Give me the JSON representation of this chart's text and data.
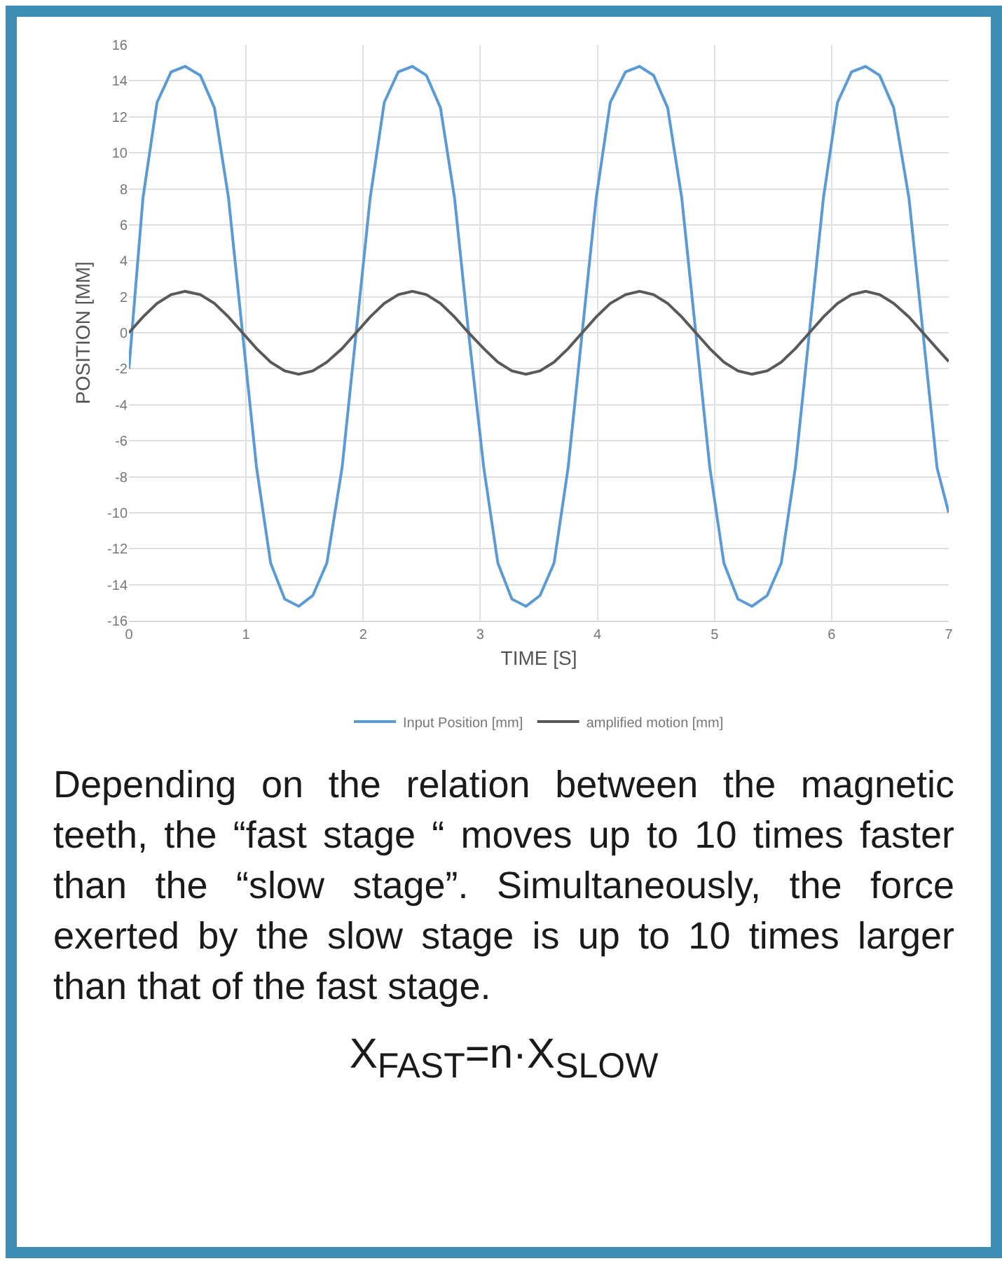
{
  "chart_data": {
    "type": "line",
    "xlabel": "TIME [S]",
    "ylabel": "POSITION [MM]",
    "x": [
      0,
      0.12,
      0.24,
      0.36,
      0.48,
      0.61,
      0.73,
      0.85,
      0.97,
      1.09,
      1.21,
      1.33,
      1.45,
      1.57,
      1.69,
      1.82,
      1.94,
      2.06,
      2.18,
      2.3,
      2.42,
      2.54,
      2.66,
      2.78,
      2.9,
      3.03,
      3.15,
      3.27,
      3.39,
      3.51,
      3.63,
      3.75,
      3.87,
      3.99,
      4.11,
      4.24,
      4.36,
      4.48,
      4.6,
      4.72,
      4.84,
      4.96,
      5.08,
      5.2,
      5.32,
      5.45,
      5.57,
      5.69,
      5.81,
      5.93,
      6.05,
      6.17,
      6.29,
      6.41,
      6.53,
      6.66,
      6.78,
      6.9,
      7.0
    ],
    "series": [
      {
        "name": "Input Position [mm]",
        "color": "#5b9bd5",
        "values": [
          -2,
          7.5,
          12.8,
          14.5,
          14.8,
          14.3,
          12.5,
          7.5,
          0,
          -7.5,
          -12.8,
          -14.8,
          -15.2,
          -14.6,
          -12.8,
          -7.5,
          0,
          7.5,
          12.8,
          14.5,
          14.8,
          14.3,
          12.5,
          7.5,
          0,
          -7.5,
          -12.8,
          -14.8,
          -15.2,
          -14.6,
          -12.8,
          -7.5,
          0,
          7.5,
          12.8,
          14.5,
          14.8,
          14.3,
          12.5,
          7.5,
          0,
          -7.5,
          -12.8,
          -14.8,
          -15.2,
          -14.6,
          -12.8,
          -7.5,
          0,
          7.5,
          12.8,
          14.5,
          14.8,
          14.3,
          12.5,
          7.5,
          0,
          -7.5,
          -10
        ]
      },
      {
        "name": "amplified motion [mm]",
        "color": "#595959",
        "values": [
          0,
          0.88,
          1.63,
          2.12,
          2.3,
          2.12,
          1.63,
          0.88,
          0,
          -0.88,
          -1.63,
          -2.12,
          -2.3,
          -2.12,
          -1.63,
          -0.88,
          0,
          0.88,
          1.63,
          2.12,
          2.3,
          2.12,
          1.63,
          0.88,
          0,
          -0.88,
          -1.63,
          -2.12,
          -2.3,
          -2.12,
          -1.63,
          -0.88,
          0,
          0.88,
          1.63,
          2.12,
          2.3,
          2.12,
          1.63,
          0.88,
          0,
          -0.88,
          -1.63,
          -2.12,
          -2.3,
          -2.12,
          -1.63,
          -0.88,
          0,
          0.88,
          1.63,
          2.12,
          2.3,
          2.12,
          1.63,
          0.88,
          0,
          -0.88,
          -1.6
        ]
      }
    ],
    "xlim": [
      0,
      7
    ],
    "xticks": [
      0,
      1,
      2,
      3,
      4,
      5,
      6,
      7
    ],
    "ylim": [
      -16,
      16
    ],
    "yticks": [
      -16,
      -14,
      -12,
      -10,
      -8,
      -6,
      -4,
      -2,
      0,
      2,
      4,
      6,
      8,
      10,
      12,
      14,
      16
    ],
    "grid": true,
    "legend": "bottom",
    "marker": "none",
    "line_style": "solid",
    "annotations": [
      "Depending on the relation between the magnetic teeth, the “fast stage “ moves up to 10 times faster than the “slow stage”. Simultaneously, the force exerted by the slow stage is up to 10 times larger than that of the fast stage.",
      "X$_{FAST}$=n·X$_{SLOW}$"
    ]
  }
}
